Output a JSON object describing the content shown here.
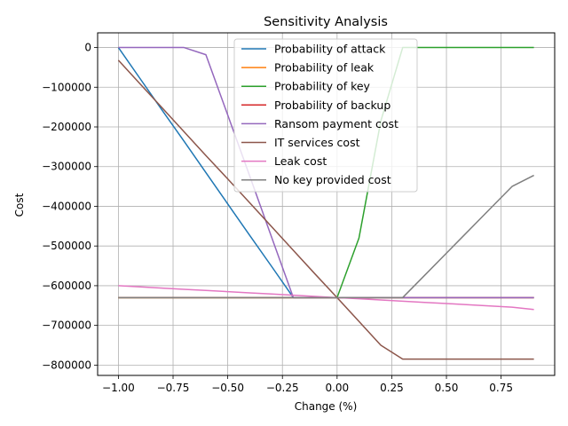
{
  "chart_data": {
    "type": "line",
    "title": "Sensitivity Analysis",
    "xlabel": "Change (%)",
    "ylabel": "Cost",
    "xlim": [
      -1.095,
      0.995
    ],
    "ylim": [
      -826000,
      37000
    ],
    "grid": true,
    "legend_position": "top-center",
    "x_ticks": [
      -1.0,
      -0.75,
      -0.5,
      -0.25,
      0.0,
      0.25,
      0.5,
      0.75
    ],
    "x_tick_labels": [
      "−1.00",
      "−0.75",
      "−0.50",
      "−0.25",
      "0.00",
      "0.25",
      "0.50",
      "0.75"
    ],
    "y_ticks": [
      0,
      -100000,
      -200000,
      -300000,
      -400000,
      -500000,
      -600000,
      -700000,
      -800000
    ],
    "y_tick_labels": [
      "0",
      "−100000",
      "−200000",
      "−300000",
      "−400000",
      "−500000",
      "−600000",
      "−700000",
      "−800000"
    ],
    "x": [
      -1.0,
      -0.9,
      -0.8,
      -0.7,
      -0.6,
      -0.5,
      -0.4,
      -0.3,
      -0.2,
      -0.1,
      0.0,
      0.1,
      0.2,
      0.3,
      0.4,
      0.5,
      0.6,
      0.7,
      0.8,
      0.9
    ],
    "series": [
      {
        "name": "Probability of attack",
        "color": "#1f77b4",
        "values": [
          0,
          -79000,
          -158000,
          -236000,
          -315000,
          -394000,
          -473000,
          -551000,
          -630000,
          -630000,
          -630000,
          -630000,
          -630000,
          -630000,
          -630000,
          -630000,
          -630000,
          -630000,
          -630000,
          -630000
        ]
      },
      {
        "name": "Probability of leak",
        "color": "#ff7f0e",
        "values": [
          -630000,
          -630000,
          -630000,
          -630000,
          -630000,
          -630000,
          -630000,
          -630000,
          -630000,
          -630000,
          -630000,
          -630000,
          -630000,
          -630000,
          -630000,
          -630000,
          -630000,
          -630000,
          -630000,
          -630000
        ]
      },
      {
        "name": "Probability of key",
        "color": "#2ca02c",
        "values": [
          -630000,
          -630000,
          -630000,
          -630000,
          -630000,
          -630000,
          -630000,
          -630000,
          -630000,
          -630000,
          -630000,
          -480000,
          -185000,
          0,
          0,
          0,
          0,
          0,
          0,
          0
        ]
      },
      {
        "name": "Probability of backup",
        "color": "#d62728",
        "values": [
          -630000,
          -630000,
          -630000,
          -630000,
          -630000,
          -630000,
          -630000,
          -630000,
          -630000,
          -630000,
          -630000,
          -630000,
          -630000,
          -630000,
          -630000,
          -630000,
          -630000,
          -630000,
          -630000,
          -630000
        ]
      },
      {
        "name": "Ransom payment cost",
        "color": "#9467bd",
        "values": [
          0,
          0,
          0,
          0,
          -18000,
          -170000,
          -323000,
          -477000,
          -630000,
          -630000,
          -630000,
          -630000,
          -630000,
          -630000,
          -630000,
          -630000,
          -630000,
          -630000,
          -630000,
          -630000
        ]
      },
      {
        "name": "IT services cost",
        "color": "#8c564b",
        "values": [
          -32000,
          -92000,
          -152000,
          -212000,
          -272000,
          -331000,
          -391000,
          -451000,
          -511000,
          -571000,
          -630000,
          -690000,
          -750000,
          -785000,
          -785000,
          -785000,
          -785000,
          -785000,
          -785000,
          -785000
        ]
      },
      {
        "name": "Leak cost",
        "color": "#e377c2",
        "values": [
          -600000,
          -603000,
          -606000,
          -609000,
          -612000,
          -615000,
          -618000,
          -621000,
          -624000,
          -627000,
          -630000,
          -633000,
          -636000,
          -639000,
          -642000,
          -645000,
          -648000,
          -651000,
          -654000,
          -660000
        ]
      },
      {
        "name": "No key provided cost",
        "color": "#7f7f7f",
        "values": [
          -630000,
          -630000,
          -630000,
          -630000,
          -630000,
          -630000,
          -630000,
          -630000,
          -630000,
          -630000,
          -630000,
          -630000,
          -630000,
          -630000,
          -574000,
          -518000,
          -462000,
          -406000,
          -350000,
          -322000
        ]
      }
    ]
  }
}
